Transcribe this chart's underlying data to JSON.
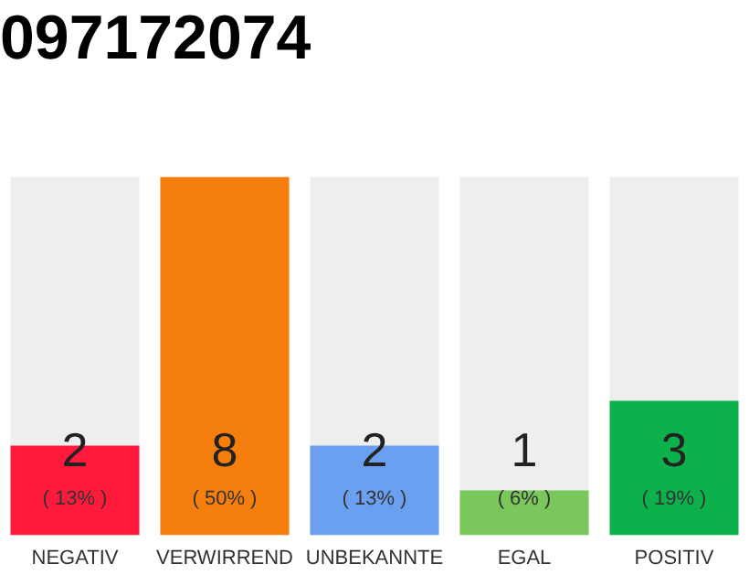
{
  "chart_data": {
    "type": "bar",
    "title": "097172074",
    "categories": [
      "NEGATIV",
      "VERWIRREND",
      "UNBEKANNTE",
      "EGAL",
      "POSITIV"
    ],
    "values": [
      2,
      8,
      2,
      1,
      3
    ],
    "colors": [
      "#ff1a3c",
      "#f57f0c",
      "#6aa0ef",
      "#7ac75c",
      "#0db14b"
    ],
    "value_labels": [
      "2\n( 13% )",
      "8\n( 50% )",
      "2\n( 13% )",
      "1\n( 6% )",
      "3\n( 19% )"
    ],
    "tick_labels": "x",
    "grid": false,
    "legend": false
  }
}
